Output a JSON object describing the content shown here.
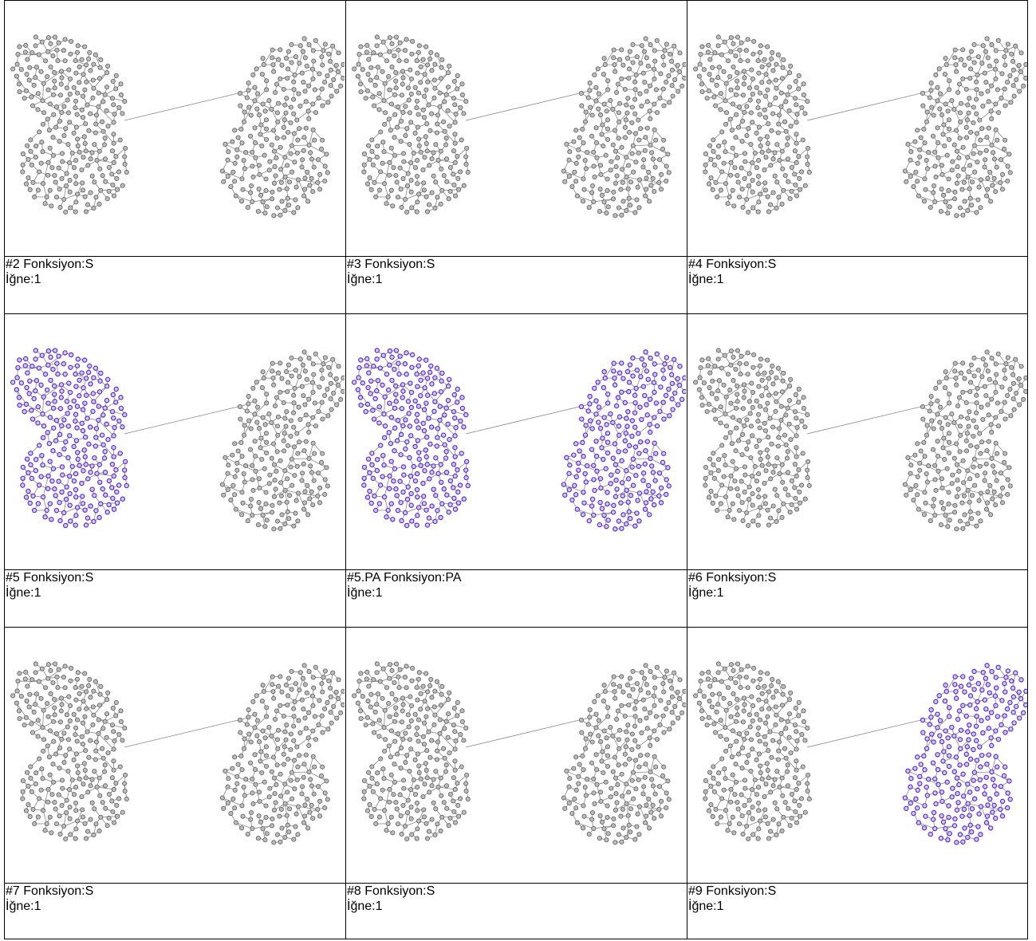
{
  "panels": [
    {
      "title": "#2 Fonksiyon:S",
      "needle": "İğne:1"
    },
    {
      "title": "#3 Fonksiyon:S",
      "needle": "İğne:1"
    },
    {
      "title": "#4 Fonksiyon:S",
      "needle": "İğne:1"
    },
    {
      "title": "#5 Fonksiyon:S",
      "needle": "İğne:1"
    },
    {
      "title": "#5.PA Fonksiyon:PA",
      "needle": "İğne:1"
    },
    {
      "title": "#6 Fonksiyon:S",
      "needle": "İğne:1"
    },
    {
      "title": "#7 Fonksiyon:S",
      "needle": "İğne:1"
    },
    {
      "title": "#8 Fonksiyon:S",
      "needle": "İğne:1"
    },
    {
      "title": "#9 Fonksiyon:S",
      "needle": "İğne:1"
    }
  ]
}
